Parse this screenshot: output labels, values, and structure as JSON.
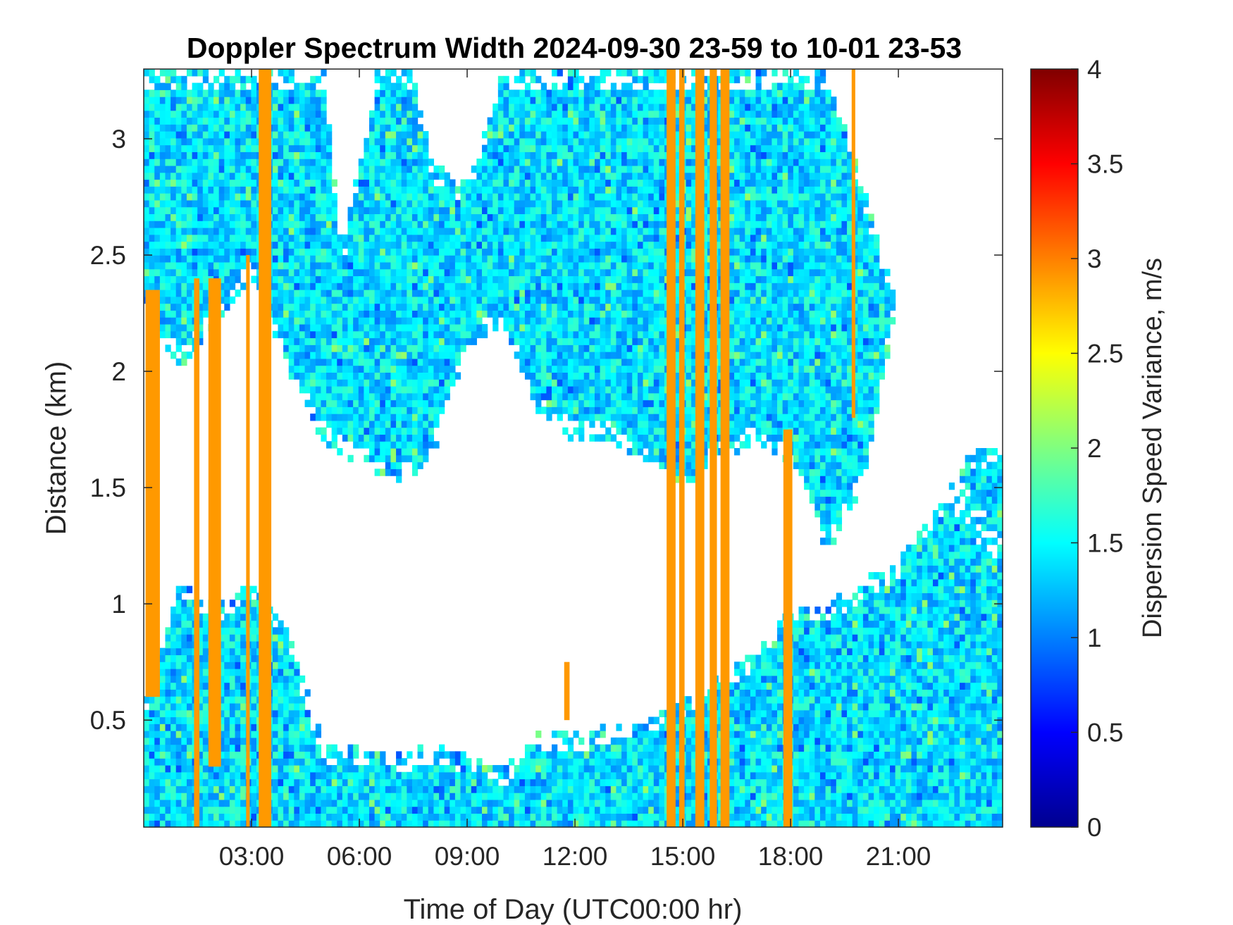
{
  "chart_data": {
    "type": "heatmap",
    "title": "Doppler Spectrum Width 2024-09-30 23-59 to 10-01 23-53",
    "xlabel": "Time of Day (UTC00:00 hr)",
    "ylabel": "Distance (km)",
    "colorbar_label": "Dispersion Speed Variance, m/s",
    "xlim": [
      0,
      23.9
    ],
    "ylim": [
      0.04,
      3.3
    ],
    "clim": [
      0,
      4
    ],
    "colormap": "jet",
    "x_ticks": [
      3,
      6,
      9,
      12,
      15,
      18,
      21
    ],
    "x_tick_labels": [
      "03:00",
      "06:00",
      "09:00",
      "12:00",
      "15:00",
      "18:00",
      "21:00"
    ],
    "y_ticks": [
      0.5,
      1,
      1.5,
      2,
      2.5,
      3
    ],
    "y_tick_labels": [
      "0.5",
      "1",
      "1.5",
      "2",
      "2.5",
      "3"
    ],
    "colorbar_ticks": [
      0,
      0.5,
      1,
      1.5,
      2,
      2.5,
      3,
      3.5,
      4
    ],
    "colorbar_tick_labels": [
      "0",
      "0.5",
      "1",
      "1.5",
      "2",
      "2.5",
      "3",
      "3.5",
      "4"
    ],
    "grid": false,
    "dominant_value": 1.4,
    "missing_color": "#ffffff",
    "saturated_columns": {
      "value": 2.9,
      "columns": [
        {
          "x": [
            0.05,
            0.45
          ],
          "y": [
            0.6,
            2.35
          ]
        },
        {
          "x": [
            1.4,
            1.55
          ],
          "y": [
            0.04,
            2.4
          ]
        },
        {
          "x": [
            1.8,
            2.15
          ],
          "y": [
            0.3,
            2.4
          ]
        },
        {
          "x": [
            2.85,
            2.95
          ],
          "y": [
            0.04,
            2.5
          ]
        },
        {
          "x": [
            3.2,
            3.55
          ],
          "y": [
            0.04,
            3.3
          ]
        },
        {
          "x": [
            11.7,
            11.85
          ],
          "y": [
            0.5,
            0.75
          ]
        },
        {
          "x": [
            14.55,
            14.8
          ],
          "y": [
            0.04,
            3.3
          ]
        },
        {
          "x": [
            14.9,
            15.05
          ],
          "y": [
            0.04,
            3.3
          ]
        },
        {
          "x": [
            15.35,
            15.6
          ],
          "y": [
            0.04,
            3.3
          ]
        },
        {
          "x": [
            15.75,
            15.95
          ],
          "y": [
            0.04,
            3.3
          ]
        },
        {
          "x": [
            16.05,
            16.3
          ],
          "y": [
            0.04,
            3.3
          ]
        },
        {
          "x": [
            17.8,
            18.05
          ],
          "y": [
            0.04,
            1.75
          ]
        },
        {
          "x": [
            19.7,
            19.8
          ],
          "y": [
            1.8,
            3.3
          ]
        }
      ]
    },
    "upper_band_top_km": [
      [
        0,
        3.3
      ],
      [
        1,
        3.3
      ],
      [
        2,
        3.3
      ],
      [
        3,
        3.3
      ],
      [
        4,
        3.3
      ],
      [
        5,
        3.3
      ],
      [
        5.5,
        2.5
      ],
      [
        6.5,
        3.3
      ],
      [
        7.5,
        3.3
      ],
      [
        8,
        2.9
      ],
      [
        9,
        2.8
      ],
      [
        10,
        3.3
      ],
      [
        11,
        3.3
      ],
      [
        12,
        3.3
      ],
      [
        13,
        3.3
      ],
      [
        14,
        3.3
      ],
      [
        15,
        3.3
      ],
      [
        16,
        3.3
      ],
      [
        17,
        3.3
      ],
      [
        18,
        3.3
      ],
      [
        19,
        3.3
      ],
      [
        20,
        2.8
      ],
      [
        21,
        2.3
      ],
      [
        22,
        1.6
      ],
      [
        23.9,
        1.2
      ]
    ],
    "upper_band_bottom_km": [
      [
        0,
        2.3
      ],
      [
        1,
        2.0
      ],
      [
        2,
        2.2
      ],
      [
        3,
        2.4
      ],
      [
        4,
        2.0
      ],
      [
        5,
        1.7
      ],
      [
        6,
        1.6
      ],
      [
        7,
        1.5
      ],
      [
        8,
        1.6
      ],
      [
        9,
        2.1
      ],
      [
        10,
        2.2
      ],
      [
        11,
        1.8
      ],
      [
        12,
        1.7
      ],
      [
        13,
        1.7
      ],
      [
        14,
        1.6
      ],
      [
        15,
        1.5
      ],
      [
        16,
        1.6
      ],
      [
        17,
        1.7
      ],
      [
        18,
        1.6
      ],
      [
        19,
        1.2
      ],
      [
        20,
        1.5
      ],
      [
        21,
        2.3
      ],
      [
        22,
        1.6
      ],
      [
        23.9,
        1.2
      ]
    ],
    "lower_band_top_km": [
      [
        0,
        0.6
      ],
      [
        1,
        1.1
      ],
      [
        2,
        1.0
      ],
      [
        3,
        1.1
      ],
      [
        4,
        0.9
      ],
      [
        5,
        0.4
      ],
      [
        6,
        0.38
      ],
      [
        7,
        0.35
      ],
      [
        8,
        0.4
      ],
      [
        9,
        0.35
      ],
      [
        10,
        0.3
      ],
      [
        11,
        0.45
      ],
      [
        12,
        0.45
      ],
      [
        13,
        0.48
      ],
      [
        14,
        0.5
      ],
      [
        15,
        0.6
      ],
      [
        16,
        0.7
      ],
      [
        17,
        0.8
      ],
      [
        18,
        1.0
      ],
      [
        19,
        1.0
      ],
      [
        20,
        1.1
      ],
      [
        21,
        1.2
      ],
      [
        22,
        1.4
      ],
      [
        23,
        1.65
      ],
      [
        23.9,
        1.7
      ]
    ]
  }
}
